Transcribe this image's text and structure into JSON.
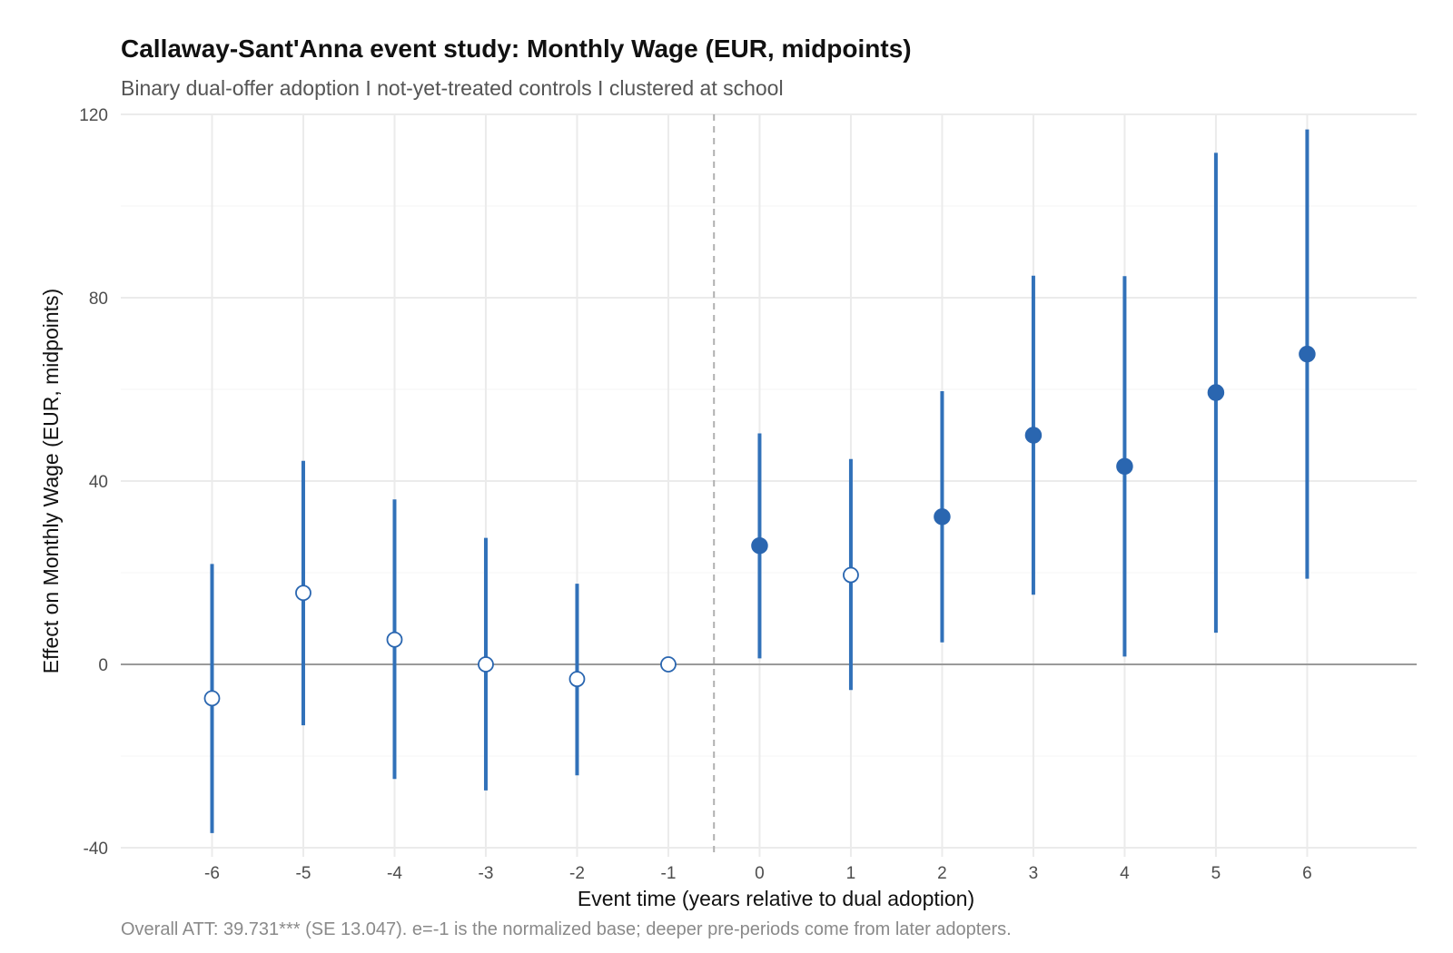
{
  "title": "Callaway-Sant'Anna event study: Monthly Wage (EUR, midpoints)",
  "subtitle": "Binary dual-offer adoption I not-yet-treated controls I clustered at school",
  "caption": "Overall ATT: 39.731*** (SE 13.047). e=-1 is the normalized base; deeper pre-periods come from later adopters.",
  "chart_data": {
    "type": "scatter",
    "title": "Callaway-Sant'Anna event study: Monthly Wage (EUR, midpoints)",
    "xlabel": "Event time (years relative to dual adoption)",
    "ylabel": "Effect on Monthly Wage (EUR, midpoints)",
    "x_ticks": [
      -6,
      -5,
      -4,
      -3,
      -2,
      -1,
      0,
      1,
      2,
      3,
      4,
      5,
      6
    ],
    "y_ticks": [
      -40,
      0,
      40,
      80,
      120
    ],
    "xlim": [
      -7,
      7.2
    ],
    "ylim": [
      -40,
      120
    ],
    "reference_vline_x": -0.5,
    "reference_hline_y": 0,
    "grid": true,
    "series": [
      {
        "points": [
          {
            "x": -6,
            "y": -7.4,
            "lo": -36.8,
            "hi": 21.9,
            "significant": false
          },
          {
            "x": -5,
            "y": 15.6,
            "lo": -13.3,
            "hi": 44.4,
            "significant": false
          },
          {
            "x": -4,
            "y": 5.4,
            "lo": -25.0,
            "hi": 36.0,
            "significant": false
          },
          {
            "x": -3,
            "y": 0.0,
            "lo": -27.5,
            "hi": 27.6,
            "significant": false
          },
          {
            "x": -2,
            "y": -3.2,
            "lo": -24.2,
            "hi": 17.6,
            "significant": false
          },
          {
            "x": -1,
            "y": 0.0,
            "lo": 0.0,
            "hi": 0.0,
            "significant": false
          },
          {
            "x": 0,
            "y": 25.9,
            "lo": 1.3,
            "hi": 50.4,
            "significant": true
          },
          {
            "x": 1,
            "y": 19.5,
            "lo": -5.6,
            "hi": 44.8,
            "significant": false
          },
          {
            "x": 2,
            "y": 32.2,
            "lo": 4.8,
            "hi": 59.6,
            "significant": true
          },
          {
            "x": 3,
            "y": 50.0,
            "lo": 15.2,
            "hi": 84.8,
            "significant": true
          },
          {
            "x": 4,
            "y": 43.2,
            "lo": 1.7,
            "hi": 84.7,
            "significant": true
          },
          {
            "x": 5,
            "y": 59.3,
            "lo": 6.9,
            "hi": 111.6,
            "significant": true
          },
          {
            "x": 6,
            "y": 67.7,
            "lo": 18.7,
            "hi": 116.7,
            "significant": true
          }
        ]
      }
    ],
    "colors": {
      "point": "#2a66b0",
      "interval": "#3171b9",
      "open_fill": "#ffffff",
      "grid": "#ebebeb",
      "zero_line": "#7f7f7f",
      "vline": "#b0b0b0"
    }
  }
}
